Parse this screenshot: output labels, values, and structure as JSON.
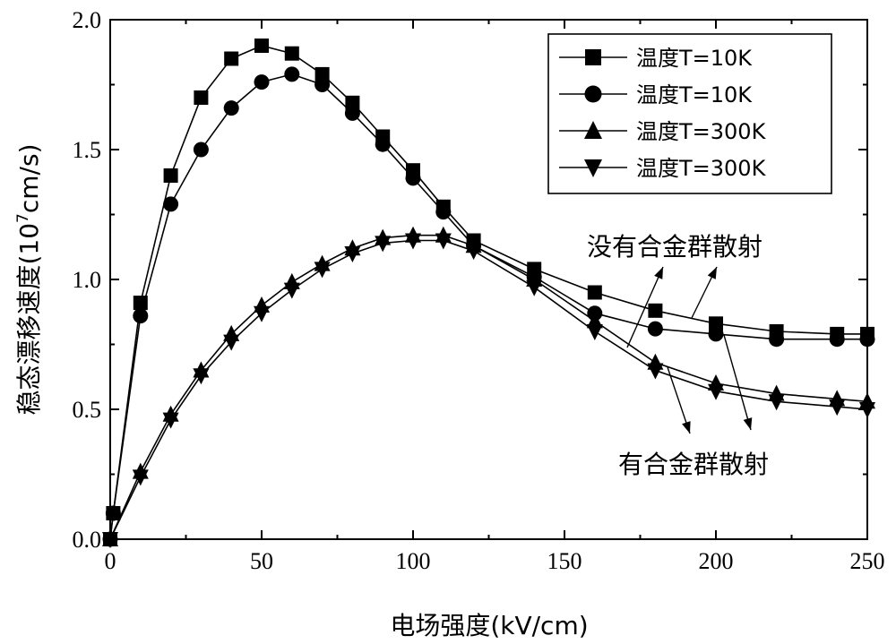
{
  "chart_data": {
    "type": "line",
    "xlabel": "电场强度(kV/cm)",
    "ylabel_prefix": "稳态漂移速度(10",
    "ylabel_exp": "7",
    "ylabel_suffix": "cm/s)",
    "xlim": [
      0,
      250
    ],
    "ylim": [
      0,
      2.0
    ],
    "xticks": [
      0,
      50,
      100,
      150,
      200,
      250
    ],
    "xtick_labels": [
      "0",
      "50",
      "100",
      "150",
      "200",
      "250"
    ],
    "yticks": [
      0,
      0.5,
      1.0,
      1.5,
      2.0
    ],
    "ytick_labels": [
      "0.0",
      "0.5",
      "1.0",
      "1.5",
      "2.0"
    ],
    "legend_position": "top-right",
    "series": [
      {
        "name": "温度T=10K",
        "marker": "square",
        "x": [
          0,
          1,
          10,
          20,
          30,
          40,
          50,
          60,
          70,
          80,
          90,
          100,
          110,
          120,
          140,
          160,
          180,
          200,
          220,
          240,
          250
        ],
        "y": [
          0.0,
          0.1,
          0.91,
          1.4,
          1.7,
          1.85,
          1.9,
          1.87,
          1.79,
          1.68,
          1.55,
          1.42,
          1.28,
          1.15,
          1.04,
          0.95,
          0.88,
          0.83,
          0.8,
          0.79,
          0.79
        ]
      },
      {
        "name": "温度T=10K",
        "marker": "circle",
        "x": [
          0,
          1,
          10,
          20,
          30,
          40,
          50,
          60,
          70,
          80,
          90,
          100,
          110,
          120,
          140,
          160,
          180,
          200,
          220,
          240,
          250
        ],
        "y": [
          0.0,
          0.1,
          0.86,
          1.29,
          1.5,
          1.66,
          1.76,
          1.79,
          1.75,
          1.64,
          1.52,
          1.39,
          1.26,
          1.13,
          1.01,
          0.87,
          0.81,
          0.79,
          0.77,
          0.77,
          0.77
        ]
      },
      {
        "name": "温度T=300K",
        "marker": "triangle-up",
        "x": [
          0,
          10,
          20,
          30,
          40,
          50,
          60,
          70,
          80,
          90,
          100,
          110,
          120,
          140,
          160,
          180,
          200,
          220,
          240,
          250
        ],
        "y": [
          0.0,
          0.26,
          0.48,
          0.65,
          0.79,
          0.9,
          0.99,
          1.06,
          1.12,
          1.16,
          1.17,
          1.17,
          1.13,
          1.0,
          0.84,
          0.68,
          0.6,
          0.56,
          0.54,
          0.53
        ]
      },
      {
        "name": "温度T=300K",
        "marker": "triangle-down",
        "x": [
          0,
          10,
          20,
          30,
          40,
          50,
          60,
          70,
          80,
          90,
          100,
          110,
          120,
          140,
          160,
          180,
          200,
          220,
          240,
          250
        ],
        "y": [
          0.0,
          0.24,
          0.46,
          0.63,
          0.76,
          0.87,
          0.96,
          1.04,
          1.1,
          1.14,
          1.15,
          1.15,
          1.11,
          0.97,
          0.8,
          0.65,
          0.57,
          0.53,
          0.51,
          0.5
        ]
      }
    ],
    "annotations": {
      "no_alloy": "没有合金群散射",
      "with_alloy": "有合金群散射"
    }
  }
}
